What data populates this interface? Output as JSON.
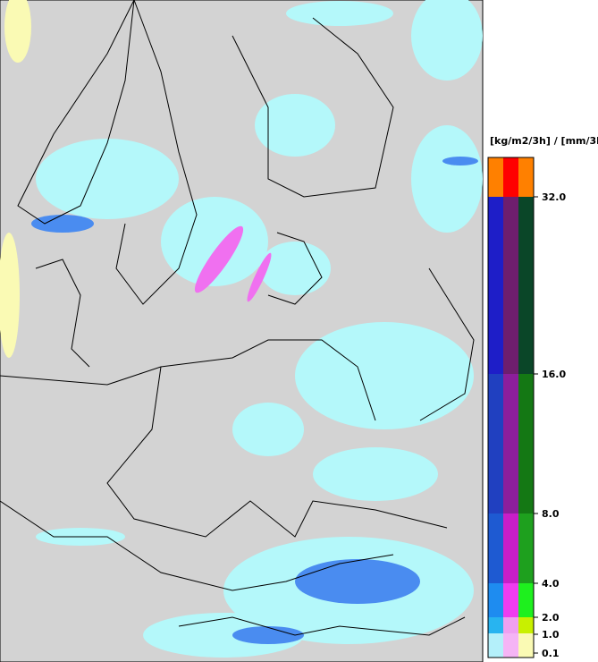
{
  "legend": {
    "title": "[kg/m2/3h] / [mm/3h]",
    "ticks": [
      {
        "value": 0.1,
        "label": "0.1"
      },
      {
        "value": 1,
        "label": "1.0"
      },
      {
        "value": 2,
        "label": "2.0"
      },
      {
        "value": 4,
        "label": "4.0"
      },
      {
        "value": 8,
        "label": "8.0"
      },
      {
        "value": 16,
        "label": "16.0"
      },
      {
        "value": 32,
        "label": "32.0"
      }
    ],
    "bands": [
      [
        "#b4f0fa",
        "#f5b4f5",
        "#fafab4"
      ],
      [
        "#28b4f0",
        "#f0a0f0",
        "#c8f000"
      ],
      [
        "#1e8cf0",
        "#f03cf0",
        "#1ef01e"
      ],
      [
        "#1e5ad2",
        "#c81ec8",
        "#1ea01e"
      ],
      [
        "#2040c0",
        "#8c1e9c",
        "#147814"
      ],
      [
        "#1e1ec8",
        "#6e1e6e",
        "#0a4628"
      ],
      [
        "#ff8000",
        "#ff0000",
        "#ff8000"
      ]
    ]
  }
}
